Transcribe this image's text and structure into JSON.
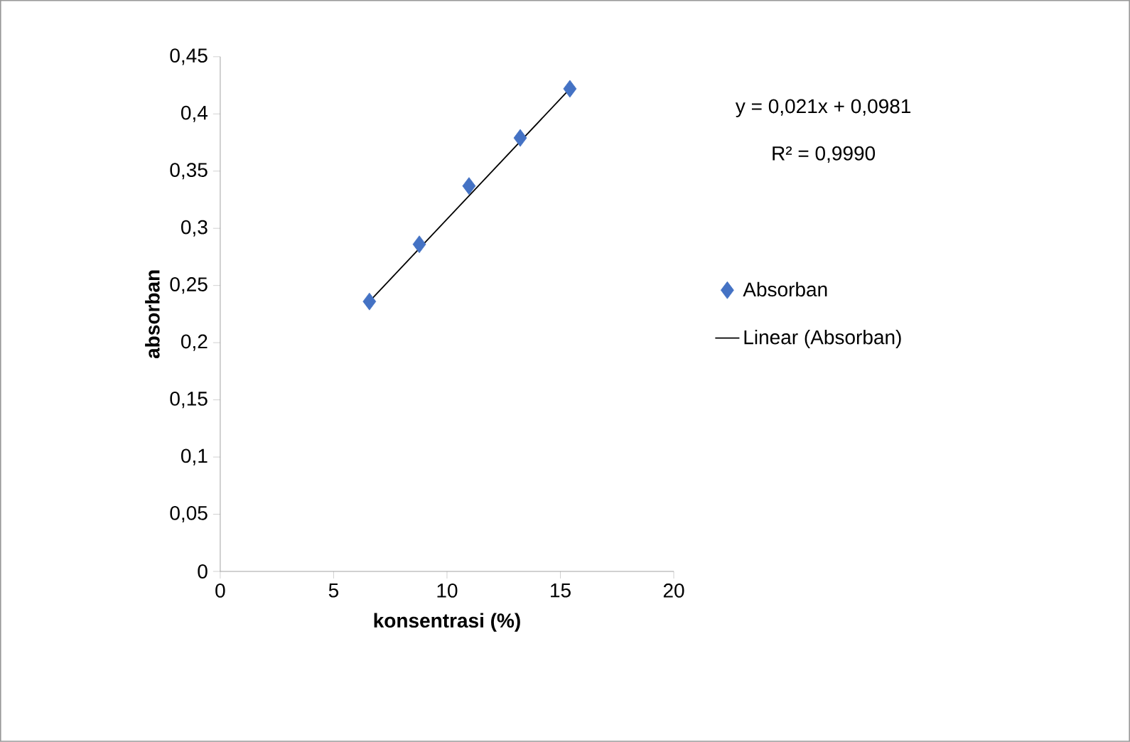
{
  "chart_data": {
    "type": "scatter",
    "xlabel": "konsentrasi (%)",
    "ylabel": "absorban",
    "xlim": [
      0,
      20
    ],
    "xticks": [
      0,
      5,
      10,
      15,
      20
    ],
    "ylim": [
      0,
      0.45
    ],
    "yticks": [
      0,
      {
        "value": 0.05,
        "label": "0,05"
      },
      {
        "value": 0.1,
        "label": "0,1"
      },
      {
        "value": 0.15,
        "label": "0,15"
      },
      {
        "value": 0.2,
        "label": "0,2"
      },
      {
        "value": 0.25,
        "label": "0,25"
      },
      {
        "value": 0.3,
        "label": "0,3"
      },
      {
        "value": 0.35,
        "label": "0,35"
      },
      {
        "value": 0.4,
        "label": "0,4"
      },
      {
        "value": 0.45,
        "label": "0,45"
      }
    ],
    "legend": "right",
    "series": [
      {
        "name": "Absorban",
        "color": "#4472c4",
        "marker": "diamond",
        "x": [
          6.58,
          8.78,
          10.97,
          13.23,
          15.42
        ],
        "values": [
          0.236,
          0.286,
          0.337,
          0.379,
          0.422
        ]
      },
      {
        "name": "Linear (Absorban)",
        "type": "line",
        "color": "#000000",
        "marker": "none",
        "x": [
          6.58,
          15.42
        ],
        "values": [
          0.236,
          0.422
        ]
      }
    ],
    "annotations": [
      "y = 0,021x + 0,0981",
      "R² = 0,9990"
    ]
  }
}
